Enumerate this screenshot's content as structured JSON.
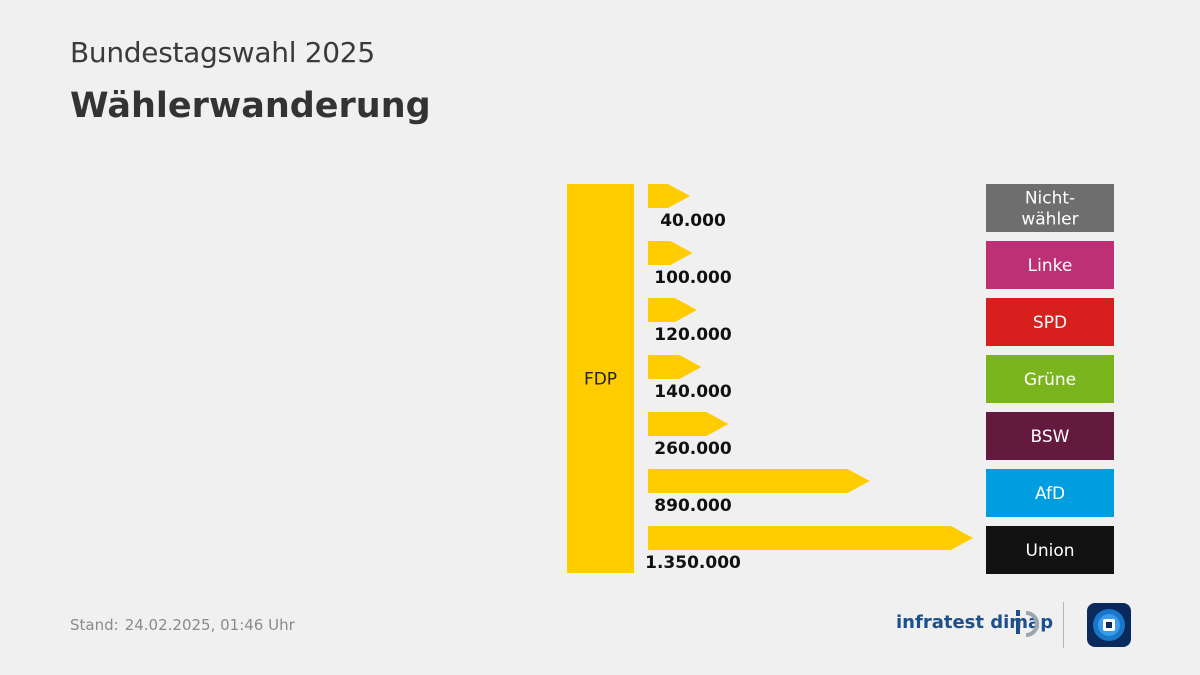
{
  "header": {
    "supertitle": "Bundestagswahl 2025",
    "title": "Wählerwanderung"
  },
  "chart_data": {
    "type": "bar",
    "source_party": {
      "name": "FDP",
      "color": "#ffcc00"
    },
    "arrow_color": "#ffcc00",
    "categories": [
      "Nicht-\nwähler",
      "Linke",
      "SPD",
      "Grüne",
      "BSW",
      "AfD",
      "Union"
    ],
    "values": [
      40000,
      100000,
      120000,
      140000,
      260000,
      890000,
      1350000
    ],
    "value_labels": [
      "40.000",
      "100.000",
      "120.000",
      "140.000",
      "260.000",
      "890.000",
      "1.350.000"
    ],
    "target_colors": [
      "#6e6e6e",
      "#be3075",
      "#d71f1d",
      "#7ab51d",
      "#641a3e",
      "#009ee0",
      "#121212"
    ]
  },
  "footer": {
    "stand_label": "Stand:",
    "stand_date": "24.02.2025, 01:46 Uhr",
    "brand": "infratest dimap",
    "brand_logo_icon": "infratest-dimap-logo-icon",
    "broadcaster_logo_icon": "tagesschau-logo-icon"
  }
}
